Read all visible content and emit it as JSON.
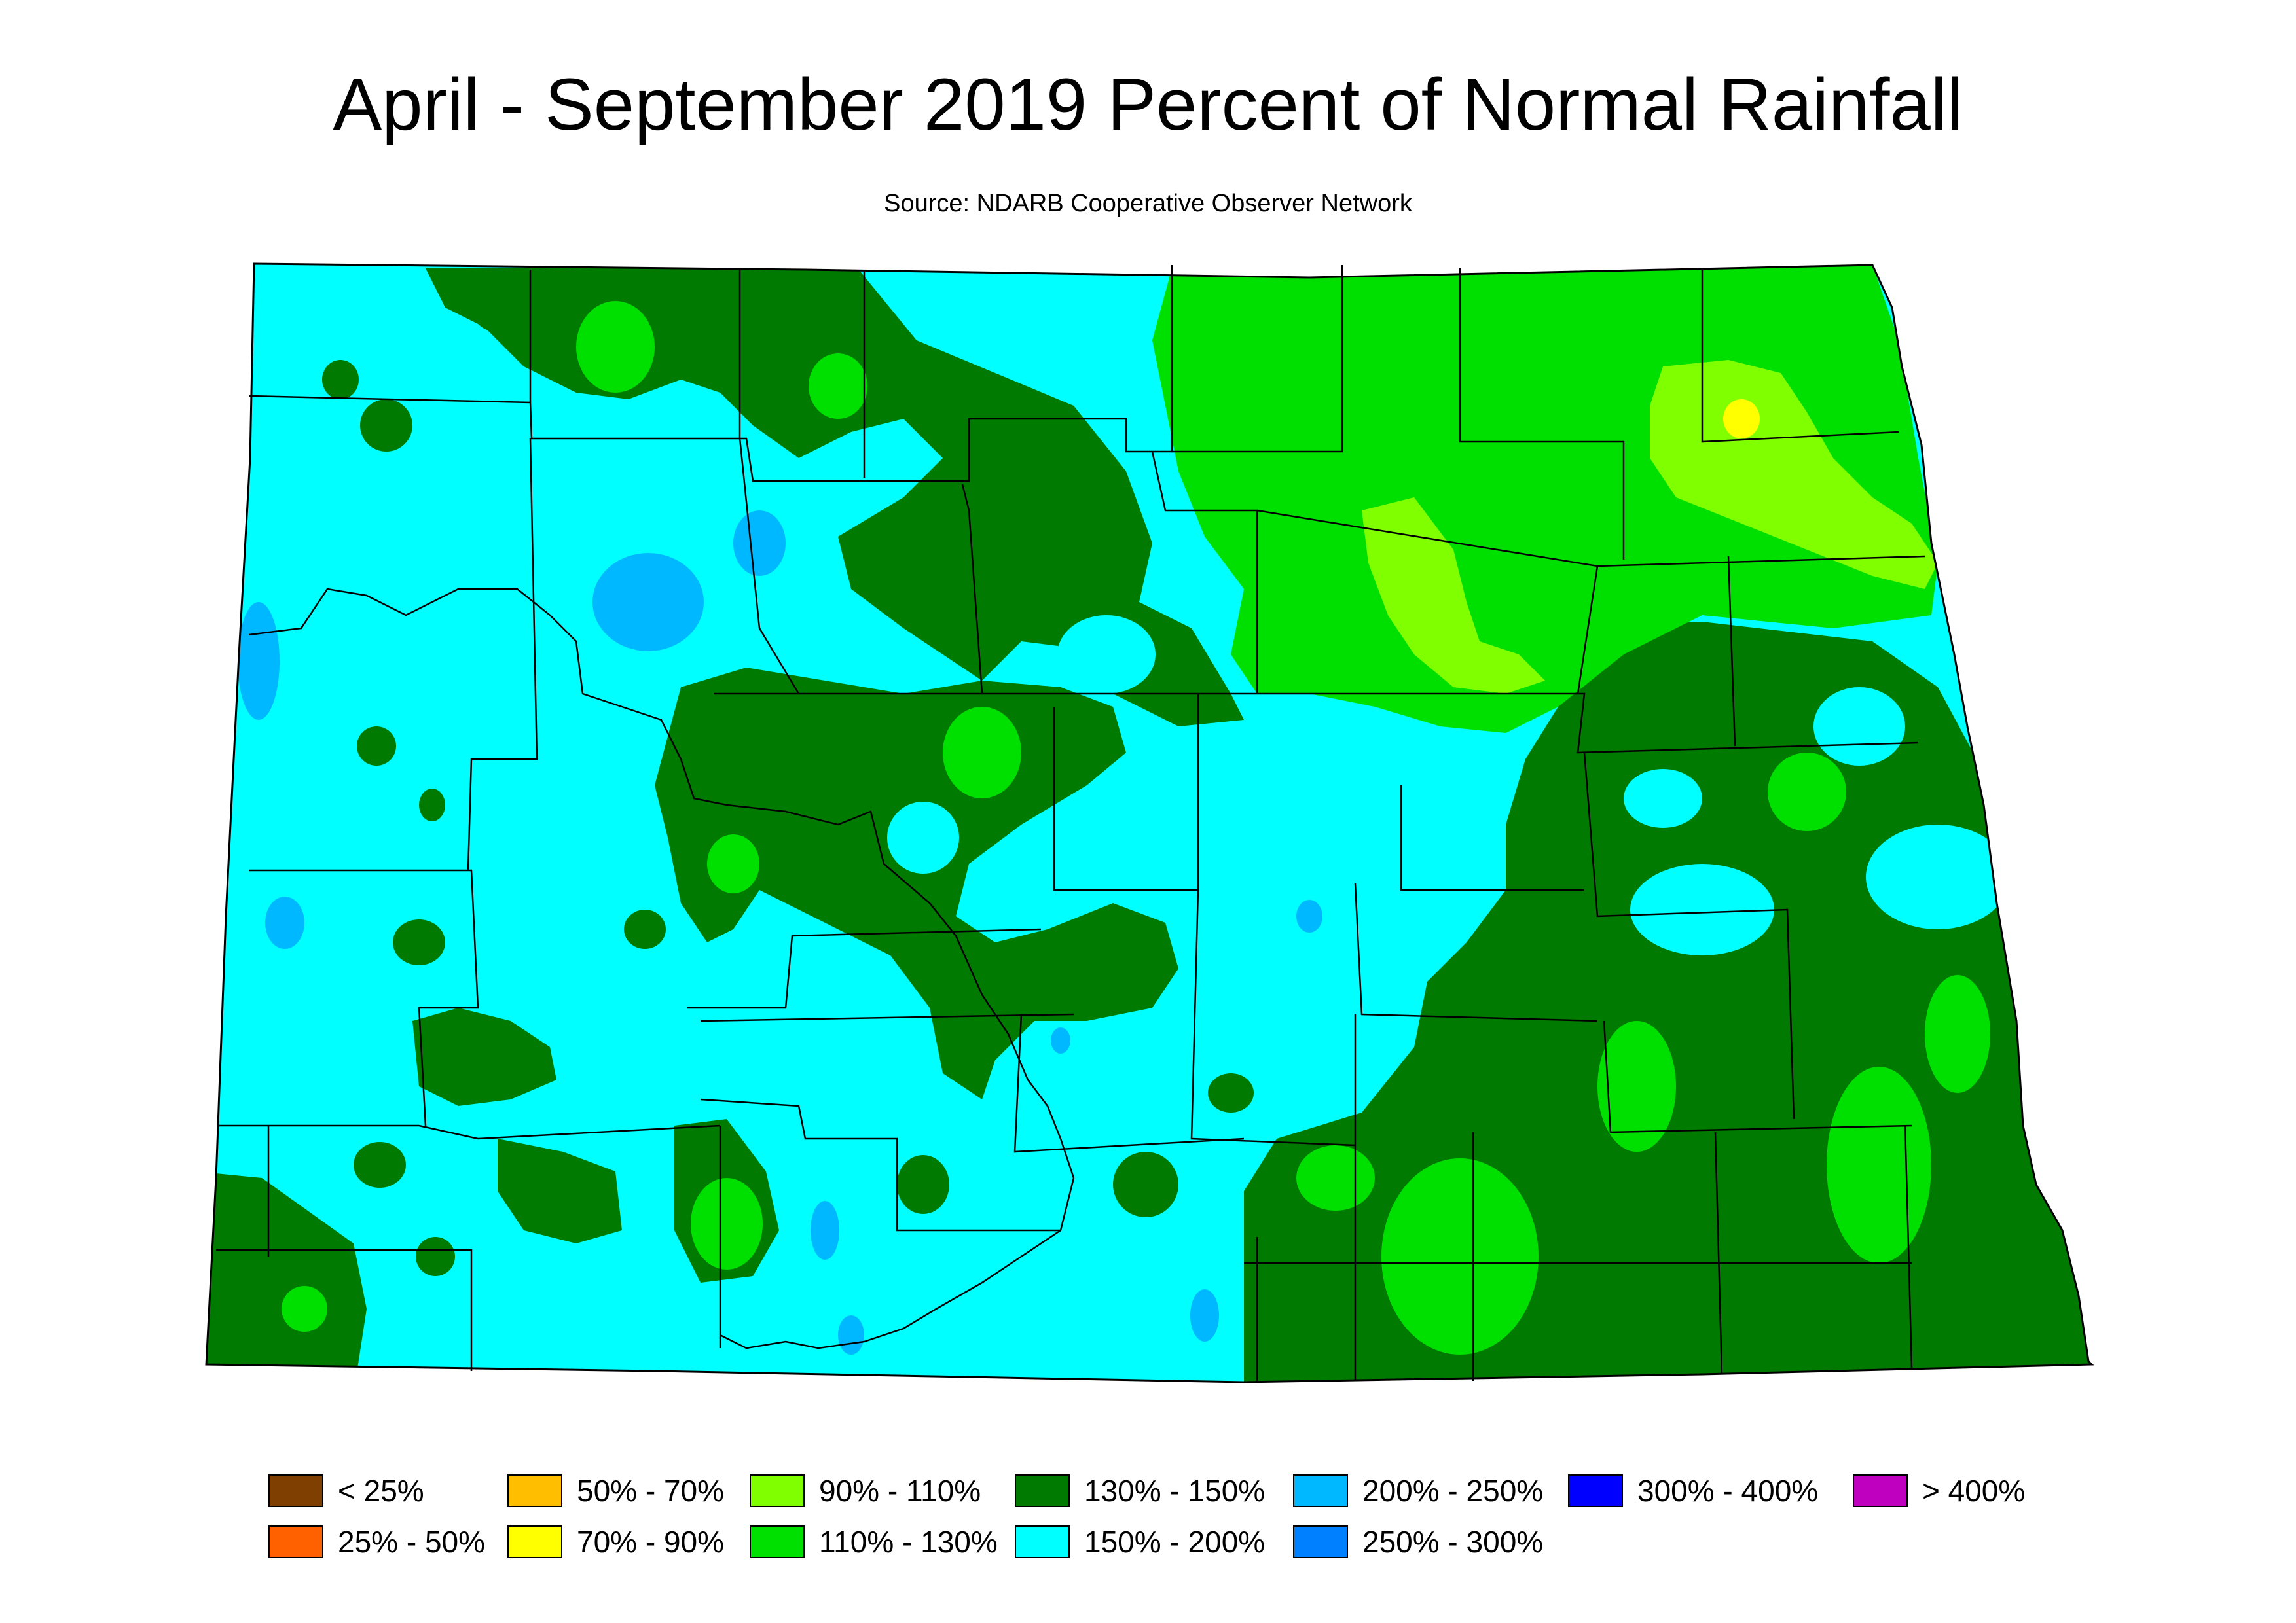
{
  "title": "April - September 2019 Percent of Normal Rainfall",
  "subtitle": "Source: NDARB Cooperative Observer Network",
  "colors": {
    "background": "#ffffff",
    "outline": "#000000"
  },
  "legend": [
    {
      "label": "< 25%",
      "color": "#7F3F00"
    },
    {
      "label": "25% - 50%",
      "color": "#FF6000"
    },
    {
      "label": "50% - 70%",
      "color": "#FFBF00"
    },
    {
      "label": "70% - 90%",
      "color": "#FFFF00"
    },
    {
      "label": "90% - 110%",
      "color": "#80FF00"
    },
    {
      "label": "110% - 130%",
      "color": "#00E000"
    },
    {
      "label": "130% - 150%",
      "color": "#007A00"
    },
    {
      "label": "150% - 200%",
      "color": "#00FFFF"
    },
    {
      "label": "200% - 250%",
      "color": "#00B8FF"
    },
    {
      "label": "250% - 300%",
      "color": "#0080FF"
    },
    {
      "label": "300% - 400%",
      "color": "#0000FF"
    },
    {
      "label": "> 400%",
      "color": "#BF00BF"
    }
  ]
}
